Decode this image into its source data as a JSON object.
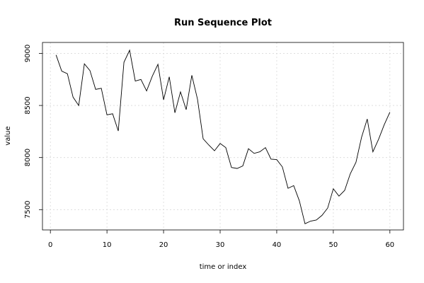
{
  "chart_data": {
    "type": "line",
    "title": "Run Sequence Plot",
    "xlabel": "time or index",
    "ylabel": "value",
    "xlim": [
      -1.4,
      62.4
    ],
    "ylim": [
      7305,
      9105
    ],
    "xticks": [
      0,
      10,
      20,
      30,
      40,
      50,
      60
    ],
    "yticks": [
      7500,
      8000,
      8500,
      9000
    ],
    "grid": true,
    "series": [
      {
        "x": [
          1,
          2,
          3,
          4,
          5,
          6,
          7,
          8,
          9,
          10,
          11,
          12,
          13,
          14,
          15,
          16,
          17,
          18,
          19,
          20,
          21,
          22,
          23,
          24,
          25,
          26,
          27,
          28,
          29,
          30,
          31,
          32,
          33,
          34,
          35,
          36,
          37,
          38,
          39,
          40,
          41,
          42,
          43,
          44,
          45,
          46,
          47,
          48,
          49,
          50,
          51,
          52,
          53,
          54,
          55,
          56,
          57,
          58,
          59,
          60
        ],
        "values": [
          8985,
          8830,
          8805,
          8580,
          8500,
          8900,
          8835,
          8655,
          8665,
          8410,
          8420,
          8255,
          8915,
          9030,
          8735,
          8750,
          8640,
          8780,
          8895,
          8555,
          8775,
          8430,
          8630,
          8460,
          8790,
          8560,
          8180,
          8120,
          8065,
          8135,
          8095,
          7905,
          7895,
          7920,
          8085,
          8040,
          8055,
          8095,
          7985,
          7980,
          7910,
          7705,
          7730,
          7585,
          7365,
          7390,
          7400,
          7445,
          7515,
          7700,
          7630,
          7685,
          7845,
          7955,
          8195,
          8370,
          8055,
          8175,
          8315,
          8435
        ]
      }
    ]
  }
}
